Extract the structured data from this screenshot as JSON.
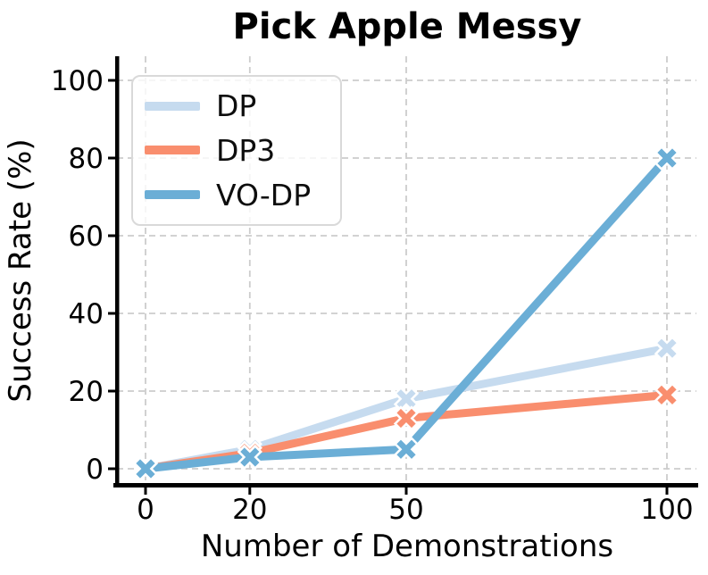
{
  "figure": {
    "background": "#ffffff",
    "grid_color": "#cccccc",
    "axis_color": "#000000",
    "tick_label_color": "#000000",
    "legend_border_color": "#d9d9d9"
  },
  "chart_data": {
    "type": "line",
    "title": "Pick Apple Messy",
    "xlabel": "Number of Demonstrations",
    "ylabel": "Success Rate (%)",
    "x": [
      0,
      20,
      50,
      100
    ],
    "x_tick_labels": [
      "0",
      "20",
      "50",
      "100"
    ],
    "y_ticks": [
      0,
      20,
      40,
      60,
      80,
      100
    ],
    "y_tick_labels": [
      "0",
      "20",
      "40",
      "60",
      "80",
      "100"
    ],
    "xlim": [
      -6,
      106
    ],
    "ylim": [
      -5,
      106
    ],
    "grid": true,
    "grid_style": "dashed",
    "marker": "X",
    "legend_position": "upper-left",
    "series": [
      {
        "name": "DP",
        "color": "#c6dbef",
        "values": [
          0,
          5,
          18,
          31
        ]
      },
      {
        "name": "DP3",
        "color": "#f98e6e",
        "values": [
          0,
          4,
          13,
          19
        ]
      },
      {
        "name": "VO-DP",
        "color": "#6baed6",
        "values": [
          0,
          3,
          5,
          80
        ]
      }
    ]
  }
}
